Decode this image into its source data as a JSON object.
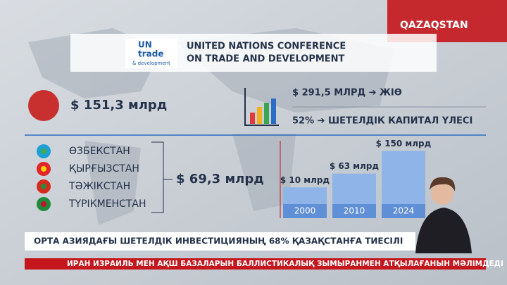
{
  "channel": {
    "logo": "QAZAQSTAN"
  },
  "header": {
    "logo_lines": [
      "UN",
      "trade",
      "& development"
    ],
    "title_lines": [
      "UNITED NATIONS CONFERENCE",
      "ON TRADE AND DEVELOPMENT"
    ]
  },
  "world": {
    "amount": "$ 151,3 млрд"
  },
  "growth": {
    "gdp": "$ 291,5 МЛРД ➔ ЖІӨ",
    "share": "52% ➔ ШЕТЕЛДІК КАПИТАЛ ҮЛЕСІ"
  },
  "region": {
    "countries": [
      "ӨЗБЕКСТАН",
      "ҚЫРҒЫЗСТАН",
      "ТӘЖІКСТАН",
      "ТҮРІКМЕНСТАН"
    ],
    "amount": "$ 69,3 млрд"
  },
  "bars": [
    {
      "year": "2000",
      "value": 10,
      "value_label": "$ 10 млрд"
    },
    {
      "year": "2010",
      "value": 63,
      "value_label": "$ 63 млрд"
    },
    {
      "year": "2024",
      "value": 150,
      "value_label": "$ 150 млрд"
    }
  ],
  "caption": "ОРТА АЗИЯДАҒЫ ШЕТЕЛДІК ИНВЕСТИЦИЯНЫҢ 68% ҚАЗАҚСТАНҒА ТИЕСІЛІ",
  "ticker": "ИРАН ИЗРАИЛЬ МЕН АҚШ БАЗАЛАРЫН БАЛЛИСТИКАЛЫҚ ЗЫМЫРАНМЕН АТҚЫЛАҒАНЫН МӘЛІМДЕДІ"
}
